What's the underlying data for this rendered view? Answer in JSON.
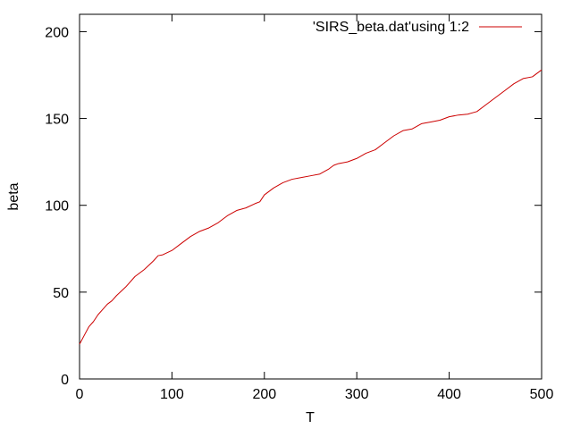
{
  "chart_data": {
    "type": "line",
    "title": "",
    "xlabel": "T",
    "ylabel": "beta",
    "xlim": [
      0,
      500
    ],
    "ylim": [
      0,
      210
    ],
    "xticks": [
      0,
      100,
      200,
      300,
      400,
      500
    ],
    "yticks": [
      0,
      50,
      100,
      150,
      200
    ],
    "grid": false,
    "legend_position": "top-right",
    "series": [
      {
        "name": "'SIRS_beta.dat'using 1:2",
        "color": "#cc0000",
        "x": [
          0,
          2,
          5,
          10,
          15,
          20,
          25,
          30,
          35,
          40,
          50,
          60,
          70,
          80,
          85,
          90,
          100,
          110,
          120,
          130,
          140,
          150,
          160,
          170,
          180,
          190,
          195,
          200,
          210,
          220,
          230,
          240,
          250,
          260,
          270,
          275,
          280,
          290,
          300,
          310,
          320,
          330,
          340,
          350,
          360,
          370,
          380,
          390,
          400,
          410,
          420,
          430,
          440,
          450,
          460,
          470,
          480,
          490,
          495,
          500
        ],
        "y": [
          20,
          22,
          25,
          30,
          33,
          37,
          40,
          43,
          45,
          48,
          53,
          59,
          63,
          68,
          71,
          71.5,
          74,
          78,
          82,
          85,
          87,
          90,
          94,
          97,
          98.5,
          101,
          102,
          106,
          110,
          113,
          115,
          116,
          117,
          118,
          121,
          123,
          124,
          125,
          127,
          130,
          132,
          136,
          140,
          143,
          144,
          147,
          148,
          149,
          151,
          152,
          152.5,
          154,
          158,
          162,
          166,
          170,
          173,
          174,
          176,
          178
        ]
      }
    ]
  }
}
